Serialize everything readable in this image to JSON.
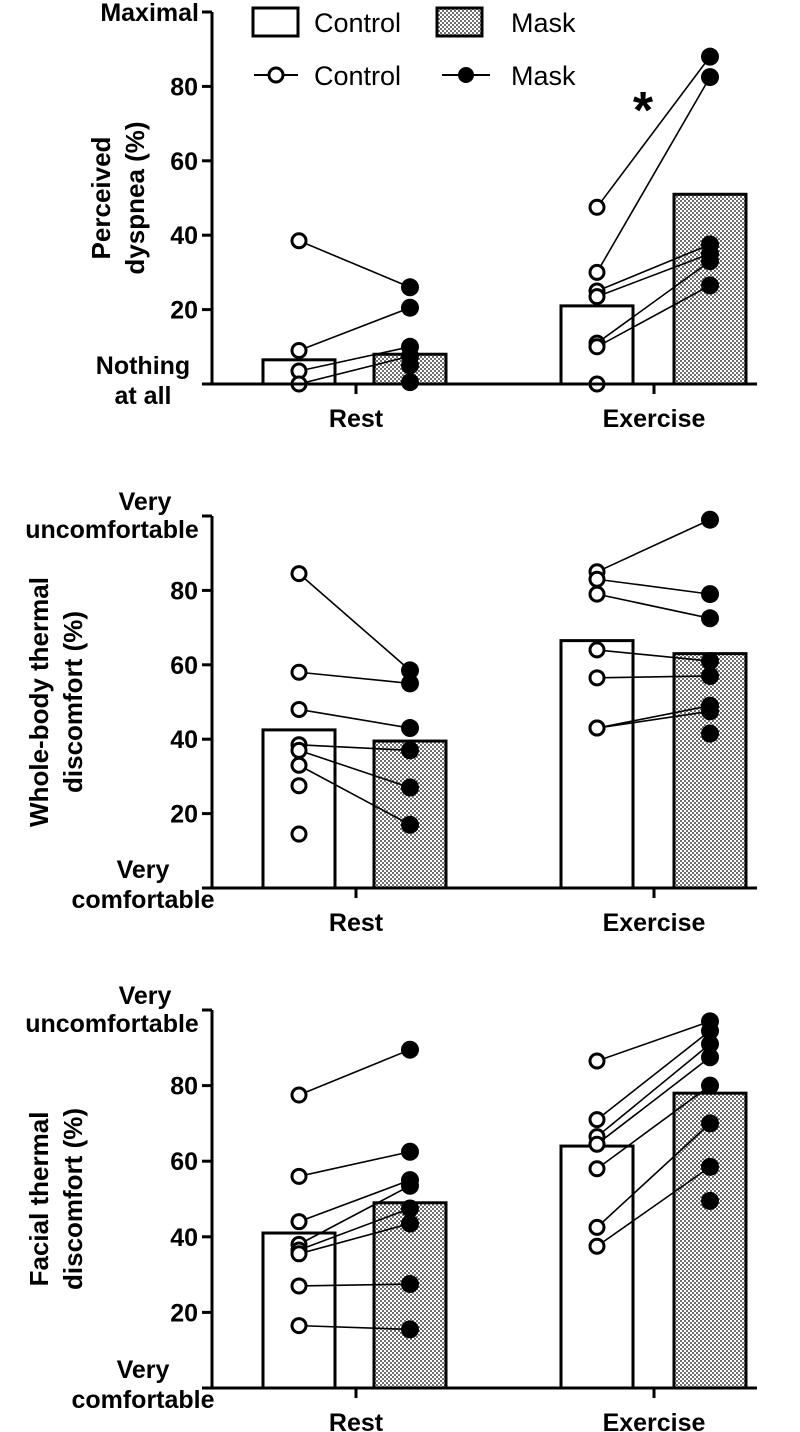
{
  "chart_data": [
    {
      "type": "bar",
      "ylabel": [
        "Perceived",
        "dyspnea (%)"
      ],
      "ylim": [
        0,
        100
      ],
      "yticks": [
        20,
        40,
        60,
        80
      ],
      "anchor_top": "Maximal",
      "anchor_bottom": [
        "Nothing",
        "at all"
      ],
      "categories": [
        "Rest",
        "Exercise"
      ],
      "series": [
        {
          "name": "Control",
          "values": [
            6.5,
            21
          ]
        },
        {
          "name": "Mask",
          "values": [
            8,
            51
          ]
        }
      ],
      "paired": [
        {
          "control": [
            38.5,
            9,
            3.5,
            0
          ],
          "mask": [
            26,
            20.5,
            10,
            7.5,
            5,
            0.5
          ]
        },
        {
          "control": [
            47.5,
            30,
            25,
            23.5,
            11,
            10,
            0
          ],
          "mask": [
            88,
            82.5,
            37.5,
            35,
            33,
            26.5
          ]
        }
      ],
      "annotation": "*"
    },
    {
      "type": "bar",
      "ylabel": [
        "Whole-body thermal",
        "discomfort (%)"
      ],
      "ylim": [
        0,
        100
      ],
      "yticks": [
        20,
        40,
        60,
        80
      ],
      "anchor_top": [
        "Very",
        "uncomfortable"
      ],
      "anchor_bottom": [
        "Very",
        "comfortable"
      ],
      "categories": [
        "Rest",
        "Exercise"
      ],
      "series": [
        {
          "name": "Control",
          "values": [
            42.5,
            66.5
          ]
        },
        {
          "name": "Mask",
          "values": [
            39.5,
            63
          ]
        }
      ],
      "paired": [
        {
          "control": [
            84.5,
            58,
            48,
            38.5,
            37,
            33,
            27.5,
            14.5
          ],
          "mask": [
            58.5,
            55,
            43,
            37,
            27,
            17
          ]
        },
        {
          "control": [
            85,
            83,
            79,
            64,
            56.5,
            43,
            43
          ],
          "mask": [
            99,
            79,
            72.5,
            61,
            57,
            49,
            47.5,
            41.5
          ]
        }
      ]
    },
    {
      "type": "bar",
      "ylabel": [
        "Facial thermal",
        "discomfort (%)"
      ],
      "ylim": [
        0,
        100
      ],
      "yticks": [
        20,
        40,
        60,
        80
      ],
      "anchor_top": [
        "Very",
        "uncomfortable"
      ],
      "anchor_bottom": [
        "Very",
        "comfortable"
      ],
      "categories": [
        "Rest",
        "Exercise"
      ],
      "series": [
        {
          "name": "Control",
          "values": [
            41,
            64
          ]
        },
        {
          "name": "Mask",
          "values": [
            49,
            78
          ]
        }
      ],
      "paired": [
        {
          "control": [
            77.5,
            56,
            44,
            38,
            36.5,
            35.5,
            27,
            16.5
          ],
          "mask": [
            89.5,
            62.5,
            55,
            53.5,
            47.5,
            43.5,
            27.5,
            15.5
          ]
        },
        {
          "control": [
            86.5,
            71,
            66.5,
            64.5,
            58,
            42.5,
            37.5
          ],
          "mask": [
            97,
            94.5,
            91,
            87.5,
            80,
            70,
            58.5,
            49.5
          ]
        }
      ]
    }
  ],
  "legend": {
    "bar_items": [
      "Control",
      "Mask"
    ],
    "point_items": [
      "Control",
      "Mask"
    ]
  }
}
